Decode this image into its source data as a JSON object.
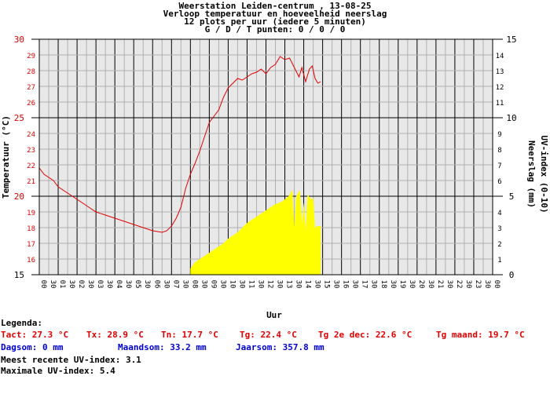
{
  "header": {
    "line1": "Weerstation Leiden-centrum , 13-08-25",
    "line2": "Verloop temperatuur en hoeveelheid neerslag",
    "line3": "12 plots per uur (iedere 5 minuten)",
    "line4": "G / D / T punten: 0 / 0 / 0"
  },
  "legend": {
    "title": "Legenda:",
    "tact": "Tact: 27.3 °C",
    "tx": "Tx: 28.9 °C",
    "tn": "Tn: 17.7 °C",
    "tg": "Tg: 22.4 °C",
    "tg2": "Tg 2e dec: 22.6 °C",
    "tgmaand": "Tg maand: 19.7 °C",
    "dagsom": "Dagsom: 0 mm",
    "maandsom": "Maandsom: 33.2 mm",
    "jaarsom": "Jaarsom: 357.8 mm",
    "uv_recent": "Meest recente UV-index: 3.1",
    "uv_max": "Maximale UV-index: 5.4"
  },
  "colors": {
    "temperature": "#e00000",
    "uv": "#ffff00",
    "left_axis": "#e00000",
    "grid": "#b0b0b0",
    "major_grid": "#000000"
  },
  "chart_data": {
    "type": "line",
    "xlabel": "Uur",
    "ylabel_left": "Temperatuur (°C)",
    "ylabel_right_1": "Neerslag (mm)",
    "ylabel_right_2": "UV-index (0-10)",
    "ylim_left": [
      15,
      30
    ],
    "ylim_right": [
      0,
      15
    ],
    "x_ticks": [
      "00",
      "30",
      "01",
      "30",
      "02",
      "30",
      "03",
      "30",
      "04",
      "30",
      "05",
      "30",
      "06",
      "30",
      "07",
      "30",
      "08",
      "30",
      "09",
      "30",
      "10",
      "30",
      "11",
      "30",
      "12",
      "30",
      "13",
      "30",
      "14",
      "30",
      "15",
      "30",
      "16",
      "30",
      "17",
      "30",
      "18",
      "30",
      "19",
      "30",
      "20",
      "30",
      "21",
      "30",
      "22",
      "30",
      "23",
      "30",
      "00"
    ],
    "y_left_ticks": [
      "15",
      "16",
      "17",
      "18",
      "19",
      "20",
      "21",
      "22",
      "23",
      "24",
      "25",
      "26",
      "27",
      "28",
      "29",
      "30"
    ],
    "y_right_ticks": [
      "0",
      "1",
      "2",
      "3",
      "4",
      "5",
      "6",
      "7",
      "8",
      "9",
      "10",
      "11",
      "12",
      "13",
      "14",
      "15"
    ],
    "grid": true,
    "series": [
      {
        "kind": "line",
        "axis": "left",
        "color": "#e00000",
        "points": [
          [
            0.0,
            21.8
          ],
          [
            0.25,
            21.4
          ],
          [
            0.5,
            21.2
          ],
          [
            0.75,
            21.0
          ],
          [
            1.0,
            20.6
          ],
          [
            1.5,
            20.2
          ],
          [
            2.0,
            19.8
          ],
          [
            2.5,
            19.4
          ],
          [
            3.0,
            19.0
          ],
          [
            3.5,
            18.8
          ],
          [
            4.0,
            18.6
          ],
          [
            4.5,
            18.4
          ],
          [
            5.0,
            18.2
          ],
          [
            5.5,
            18.0
          ],
          [
            6.0,
            17.8
          ],
          [
            6.5,
            17.7
          ],
          [
            6.75,
            17.8
          ],
          [
            7.0,
            18.1
          ],
          [
            7.25,
            18.6
          ],
          [
            7.5,
            19.3
          ],
          [
            7.75,
            20.5
          ],
          [
            8.0,
            21.4
          ],
          [
            8.25,
            22.1
          ],
          [
            8.5,
            22.9
          ],
          [
            8.75,
            23.8
          ],
          [
            9.0,
            24.7
          ],
          [
            9.25,
            25.1
          ],
          [
            9.5,
            25.5
          ],
          [
            9.75,
            26.3
          ],
          [
            10.0,
            26.9
          ],
          [
            10.25,
            27.2
          ],
          [
            10.5,
            27.5
          ],
          [
            10.75,
            27.4
          ],
          [
            11.0,
            27.6
          ],
          [
            11.25,
            27.8
          ],
          [
            11.5,
            27.9
          ],
          [
            11.75,
            28.1
          ],
          [
            12.0,
            27.8
          ],
          [
            12.25,
            28.2
          ],
          [
            12.5,
            28.4
          ],
          [
            12.75,
            28.9
          ],
          [
            13.0,
            28.7
          ],
          [
            13.25,
            28.8
          ],
          [
            13.5,
            28.2
          ],
          [
            13.75,
            27.6
          ],
          [
            13.9,
            28.2
          ],
          [
            14.1,
            27.3
          ],
          [
            14.3,
            28.1
          ],
          [
            14.45,
            28.3
          ],
          [
            14.6,
            27.5
          ],
          [
            14.75,
            27.2
          ],
          [
            14.9,
            27.3
          ]
        ]
      },
      {
        "kind": "area",
        "axis": "right",
        "label": "UV-index",
        "color": "#ffff00",
        "points": [
          [
            8.0,
            0.4
          ],
          [
            8.25,
            0.8
          ],
          [
            8.5,
            1.0
          ],
          [
            8.75,
            1.2
          ],
          [
            9.0,
            1.4
          ],
          [
            9.25,
            1.6
          ],
          [
            9.5,
            1.8
          ],
          [
            9.75,
            2.0
          ],
          [
            10.0,
            2.3
          ],
          [
            10.25,
            2.5
          ],
          [
            10.5,
            2.7
          ],
          [
            10.75,
            3.0
          ],
          [
            11.0,
            3.3
          ],
          [
            11.25,
            3.5
          ],
          [
            11.5,
            3.7
          ],
          [
            11.75,
            3.9
          ],
          [
            12.0,
            4.1
          ],
          [
            12.25,
            4.3
          ],
          [
            12.5,
            4.5
          ],
          [
            12.75,
            4.6
          ],
          [
            13.0,
            4.8
          ],
          [
            13.2,
            5.0
          ],
          [
            13.4,
            5.4
          ],
          [
            13.5,
            3.0
          ],
          [
            13.6,
            5.0
          ],
          [
            13.8,
            5.4
          ],
          [
            13.9,
            3.2
          ],
          [
            14.0,
            4.6
          ],
          [
            14.1,
            2.8
          ],
          [
            14.2,
            5.1
          ],
          [
            14.4,
            4.8
          ],
          [
            14.5,
            4.9
          ],
          [
            14.6,
            3.0
          ],
          [
            14.75,
            3.1
          ],
          [
            14.9,
            3.1
          ]
        ]
      }
    ]
  }
}
